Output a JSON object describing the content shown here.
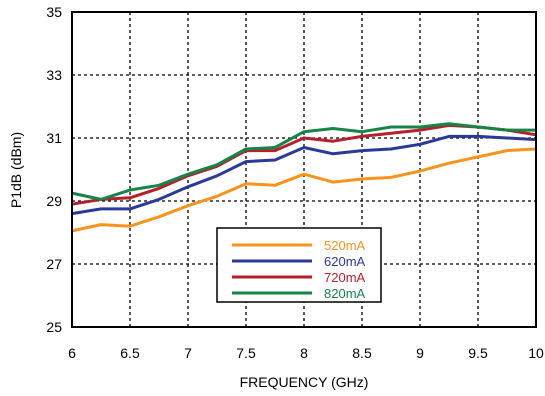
{
  "chart_data": {
    "type": "line",
    "title": "",
    "xlabel": "FREQUENCY (GHz)",
    "ylabel": "P1dB (dBm)",
    "xlim": [
      6,
      10
    ],
    "ylim": [
      25,
      35
    ],
    "xticks": [
      6,
      6.5,
      7,
      7.5,
      8,
      8.5,
      9,
      9.5,
      10
    ],
    "xtick_labels": [
      "6",
      "6.5",
      "7",
      "7.5",
      "8",
      "8.5",
      "9",
      "9.5",
      "10"
    ],
    "yticks": [
      25,
      27,
      29,
      31,
      33,
      35
    ],
    "ytick_labels": [
      "25",
      "27",
      "29",
      "31",
      "33",
      "35"
    ],
    "grid": true,
    "legend_position": "lower-center",
    "x": [
      6,
      6.25,
      6.5,
      6.75,
      7,
      7.25,
      7.5,
      7.75,
      8,
      8.25,
      8.5,
      8.75,
      9,
      9.25,
      9.5,
      9.75,
      10
    ],
    "series": [
      {
        "name": "520mA",
        "color": "#f7941d",
        "values": [
          28.05,
          28.25,
          28.2,
          28.5,
          28.85,
          29.15,
          29.55,
          29.5,
          29.85,
          29.6,
          29.7,
          29.75,
          29.95,
          30.2,
          30.4,
          30.6,
          30.65
        ]
      },
      {
        "name": "620mA",
        "color": "#2b3a97",
        "values": [
          28.6,
          28.75,
          28.75,
          29.05,
          29.45,
          29.8,
          30.25,
          30.3,
          30.7,
          30.5,
          30.6,
          30.65,
          30.8,
          31.05,
          31.05,
          31.0,
          30.95
        ]
      },
      {
        "name": "720mA",
        "color": "#b5202a",
        "values": [
          28.9,
          29.05,
          29.1,
          29.4,
          29.8,
          30.1,
          30.6,
          30.6,
          31.0,
          30.9,
          31.05,
          31.15,
          31.25,
          31.4,
          31.35,
          31.25,
          31.1
        ]
      },
      {
        "name": "820mA",
        "color": "#178448",
        "values": [
          29.25,
          29.05,
          29.35,
          29.5,
          29.85,
          30.15,
          30.65,
          30.7,
          31.2,
          31.3,
          31.2,
          31.35,
          31.35,
          31.45,
          31.35,
          31.25,
          31.25
        ]
      }
    ]
  }
}
